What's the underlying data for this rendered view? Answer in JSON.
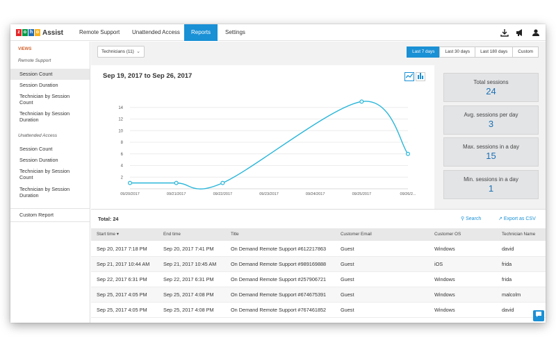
{
  "logo": {
    "letters": [
      "z",
      "o",
      "h",
      "o"
    ],
    "colors": [
      "#e42527",
      "#089949",
      "#226db4",
      "#f9b21d"
    ],
    "brand": "Assist"
  },
  "nav": {
    "items": [
      {
        "label": "Remote Support",
        "active": false
      },
      {
        "label": "Unattended Access",
        "active": false
      },
      {
        "label": "Reports",
        "active": true
      },
      {
        "label": "Settings",
        "active": false
      }
    ],
    "icons": [
      "download-icon",
      "announcement-icon",
      "user-icon"
    ]
  },
  "sidebar": {
    "views_label": "VIEWS",
    "remote_support_label": "Remote Support",
    "remote_items": [
      "Session Count",
      "Session Duration",
      "Technician by Session Count",
      "Technician by Session Duration"
    ],
    "unattended_label": "Unattended Access",
    "unattended_items": [
      "Session Count",
      "Session Duration",
      "Technician by Session Count",
      "Technician by Session Duration"
    ],
    "custom_report": "Custom Report"
  },
  "toolbar": {
    "technician_select": "Technicians (11)",
    "ranges": [
      {
        "label": "Last 7 days",
        "active": true
      },
      {
        "label": "Last 30 days",
        "active": false
      },
      {
        "label": "Last 180 days",
        "active": false
      },
      {
        "label": "Custom",
        "active": false
      }
    ]
  },
  "chart_data": {
    "type": "line",
    "title": "Sep 19, 2017 to Sep 26, 2017",
    "x": [
      "09/20/2017",
      "09/21/2017",
      "09/22/2017",
      "09/23/2017",
      "09/24/2017",
      "09/25/2017",
      "09/26/2..."
    ],
    "points": [
      {
        "x": "09/20/2017",
        "y": 1
      },
      {
        "x": "09/21/2017",
        "y": 1
      },
      {
        "x": "09/22/2017",
        "y": 1
      },
      {
        "x": "09/25/2017",
        "y": 15
      },
      {
        "x": "09/26/2...",
        "y": 6
      }
    ],
    "y_ticks": [
      2,
      4,
      6,
      8,
      10,
      12,
      14
    ],
    "ylim": [
      0,
      16
    ],
    "grid": true,
    "color": "#29b6d9"
  },
  "stats": [
    {
      "label": "Total sessions",
      "value": "24"
    },
    {
      "label": "Avg. sessions per day",
      "value": "3"
    },
    {
      "label": "Max. sessions in a day",
      "value": "15"
    },
    {
      "label": "Min. sessions in a day",
      "value": "1"
    }
  ],
  "table": {
    "total": "Total: 24",
    "search": "Search",
    "export": "Export as CSV",
    "headers": [
      "Start time",
      "End time",
      "Title",
      "Customer Email",
      "Customer OS",
      "Technician Name"
    ],
    "rows": [
      [
        "Sep 20, 2017 7:18 PM",
        "Sep 20, 2017 7:41 PM",
        "On Demand Remote Support #612217863",
        "Guest",
        "Windows",
        "david"
      ],
      [
        "Sep 21, 2017 10:44 AM",
        "Sep 21, 2017 10:45 AM",
        "On Demand Remote Support #989169888",
        "Guest",
        "iOS",
        "frida"
      ],
      [
        "Sep 22, 2017 6:31 PM",
        "Sep 22, 2017 6:31 PM",
        "On Demand Remote Support #257906721",
        "Guest",
        "Windows",
        "frida"
      ],
      [
        "Sep 25, 2017 4:05 PM",
        "Sep 25, 2017 4:08 PM",
        "On Demand Remote Support #674675391",
        "Guest",
        "Windows",
        "malcolm"
      ],
      [
        "Sep 25, 2017 4:05 PM",
        "Sep 25, 2017 4:08 PM",
        "On Demand Remote Support #767461852",
        "Guest",
        "Windows",
        "david"
      ]
    ]
  }
}
